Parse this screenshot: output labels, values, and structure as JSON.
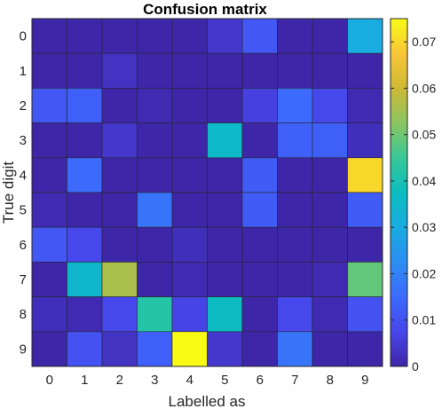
{
  "chart_data": {
    "type": "heatmap",
    "title": "Confusion matrix",
    "xlabel": "Labelled as",
    "ylabel": "True digit",
    "x_categories": [
      "0",
      "1",
      "2",
      "3",
      "4",
      "5",
      "6",
      "7",
      "8",
      "9"
    ],
    "y_categories": [
      "0",
      "1",
      "2",
      "3",
      "4",
      "5",
      "6",
      "7",
      "8",
      "9"
    ],
    "values": [
      [
        0.0,
        0.0,
        0.0,
        0.0,
        0.0,
        0.004,
        0.011,
        0.0,
        0.0,
        0.03
      ],
      [
        0.0,
        0.0,
        0.003,
        0.0,
        0.0,
        0.0,
        0.0,
        0.0,
        0.0,
        0.0
      ],
      [
        0.011,
        0.013,
        0.0,
        0.001,
        0.0,
        0.0,
        0.006,
        0.015,
        0.008,
        0.001
      ],
      [
        0.0,
        0.0,
        0.004,
        0.0,
        0.0,
        0.036,
        0.0,
        0.013,
        0.013,
        0.002
      ],
      [
        0.0,
        0.015,
        0.0,
        0.0,
        0.0,
        0.0,
        0.012,
        0.0,
        0.0,
        0.07
      ],
      [
        0.001,
        0.0,
        0.0,
        0.017,
        0.0,
        0.0,
        0.012,
        0.0,
        0.0,
        0.012
      ],
      [
        0.011,
        0.008,
        0.0,
        0.0,
        0.002,
        0.0,
        0.0,
        0.0,
        0.0,
        0.0
      ],
      [
        0.0,
        0.035,
        0.056,
        0.0,
        0.001,
        0.0,
        0.0,
        0.0,
        0.001,
        0.049
      ],
      [
        0.002,
        0.001,
        0.008,
        0.042,
        0.007,
        0.037,
        0.0,
        0.008,
        0.001,
        0.01
      ],
      [
        0.0,
        0.01,
        0.003,
        0.013,
        0.075,
        0.004,
        0.0,
        0.017,
        0.0,
        0.0
      ]
    ],
    "colorbar": {
      "colormap": "parula",
      "range": [
        0,
        0.075
      ],
      "ticks": [
        "0",
        "0.01",
        "0.02",
        "0.03",
        "0.04",
        "0.05",
        "0.06",
        "0.07"
      ],
      "tick_values": [
        0,
        0.01,
        0.02,
        0.03,
        0.04,
        0.05,
        0.06,
        0.07
      ]
    }
  }
}
